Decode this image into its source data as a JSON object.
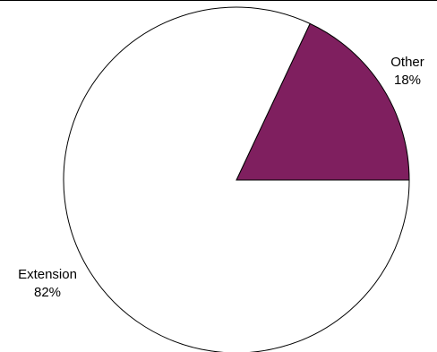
{
  "chart_data": {
    "type": "pie",
    "title": "",
    "slices": [
      {
        "label": "Other",
        "value": 18,
        "value_label": "18%",
        "color": "#7f1f5f"
      },
      {
        "label": "Extension",
        "value": 82,
        "value_label": "82%",
        "color": "#ffffff"
      }
    ],
    "start_angle_deg": 0,
    "direction": "counterclockwise",
    "stroke_color": "#000000",
    "legend": "none"
  }
}
